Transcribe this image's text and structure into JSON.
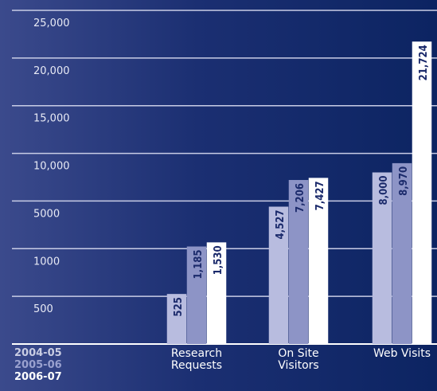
{
  "chart_data": {
    "type": "bar",
    "categories": [
      "Research\nRequests",
      "On Site\nVisitors",
      "Web Visits"
    ],
    "series": [
      {
        "name": "2004-05",
        "color": "#b8bcdf",
        "values": [
          525,
          4527,
          8000
        ],
        "value_labels": [
          "525",
          "4,527",
          "8,000"
        ]
      },
      {
        "name": "2005-06",
        "color": "#8d94c6",
        "values": [
          1185,
          7206,
          8970
        ],
        "value_labels": [
          "1,185",
          "7,206",
          "8,970"
        ]
      },
      {
        "name": "2006-07",
        "color": "#ffffff",
        "values": [
          1530,
          7427,
          21724
        ],
        "value_labels": [
          "1,530",
          "7,427",
          "21,724"
        ]
      }
    ],
    "ylim": [
      0,
      25000
    ],
    "yticks": [
      500,
      1000,
      5000,
      {
        "value": 10000,
        "label": "10,000"
      },
      {
        "value": 15000,
        "label": "15,000"
      },
      {
        "value": 20000,
        "label": "20,000"
      },
      {
        "value": 25000,
        "label": "25,000"
      }
    ],
    "scale": "piecewise",
    "grid": true
  }
}
